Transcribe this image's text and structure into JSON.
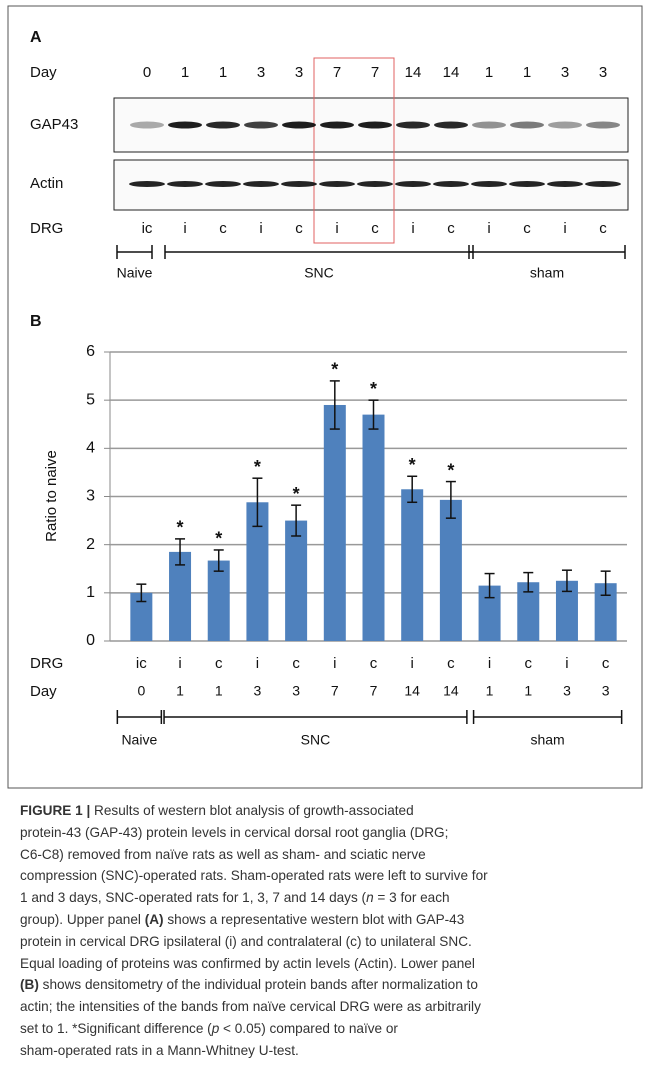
{
  "panel_a": {
    "label": "A",
    "row_labels": {
      "day": "Day",
      "gap": "GAP43",
      "actin": "Actin",
      "drg": "DRG"
    },
    "days": [
      0,
      1,
      1,
      3,
      3,
      7,
      7,
      14,
      14,
      1,
      1,
      3,
      3
    ],
    "drg": [
      "ic",
      "i",
      "c",
      "i",
      "c",
      "i",
      "c",
      "i",
      "c",
      "i",
      "c",
      "i",
      "c"
    ],
    "groups": [
      "Naive",
      "SNC",
      "sham"
    ]
  },
  "chart_data": {
    "type": "bar",
    "label": "B",
    "ylabel": "Ratio to naive",
    "row_labels": {
      "drg": "DRG",
      "day": "Day"
    },
    "categories": [
      "ic",
      "i",
      "c",
      "i",
      "c",
      "i",
      "c",
      "i",
      "c",
      "i",
      "c",
      "i",
      "c"
    ],
    "days": [
      0,
      1,
      1,
      3,
      3,
      7,
      7,
      14,
      14,
      1,
      1,
      3,
      3
    ],
    "groups": [
      "Naive",
      "SNC",
      "sham"
    ],
    "values": [
      1.0,
      1.85,
      1.67,
      2.88,
      2.5,
      4.9,
      4.7,
      3.15,
      2.93,
      1.15,
      1.22,
      1.25,
      1.2
    ],
    "errors": [
      0.18,
      0.27,
      0.22,
      0.5,
      0.32,
      0.5,
      0.3,
      0.27,
      0.38,
      0.25,
      0.2,
      0.22,
      0.25
    ],
    "significance": [
      null,
      "*",
      "*",
      "*",
      "*",
      "*",
      "*",
      "*",
      "*",
      null,
      null,
      null,
      null
    ],
    "color": "#4f81bd",
    "ylim": [
      0,
      6
    ],
    "yticks": [
      0,
      1,
      2,
      3,
      4,
      5,
      6
    ],
    "grid": true
  },
  "caption": {
    "lines": [
      [
        "FIGURE 1 |",
        " Results of western blot analysis of growth-associated"
      ],
      [
        "protein-43 (GAP-43) protein levels in cervical dorsal root ganglia (DRG;"
      ],
      [
        "C6-C8) removed from naïve rats as well as sham- and sciatic nerve"
      ],
      [
        "compression (SNC)-operated rats. Sham-operated rats were left to survive for"
      ],
      [
        "1 and 3 days, SNC-operated rats for 1, 3, 7 and 14 days (",
        "n",
        " = 3 for each"
      ],
      [
        "group). Upper panel ",
        "(A)",
        " shows a representative western blot with GAP-43"
      ],
      [
        "protein in cervical DRG ipsilateral (i) and contralateral (c) to unilateral SNC."
      ],
      [
        "Equal loading of proteins was confirmed by actin levels (Actin). Lower panel"
      ],
      [
        "(B)",
        " shows densitometry of the individual protein bands after normalization to"
      ],
      [
        "actin; the intensities of the bands from naïve cervical DRG were as arbitrarily"
      ],
      [
        "set to 1. *Significant difference (",
        "p",
        " < 0.05) compared to naïve or"
      ],
      [
        "sham-operated rats in a Mann-Whitney U-test."
      ]
    ]
  }
}
